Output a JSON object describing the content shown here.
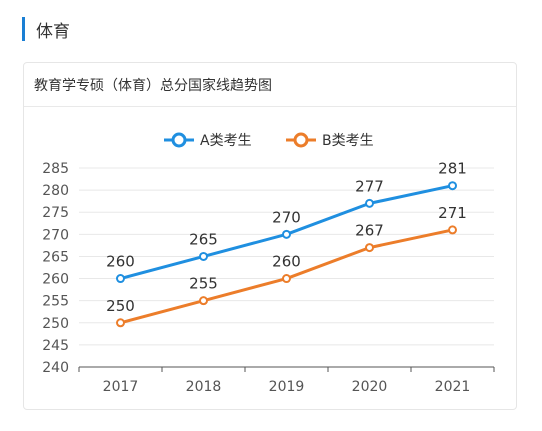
{
  "section": {
    "title": "体育"
  },
  "card": {
    "title": "教育学专硕（体育）总分国家线趋势图"
  },
  "colors": {
    "accent": "#1a7fd4",
    "seriesA": "#1f8fe0",
    "seriesB": "#ec7d2a"
  },
  "chart_data": {
    "type": "line",
    "categories": [
      "2017",
      "2018",
      "2019",
      "2020",
      "2021"
    ],
    "series": [
      {
        "name": "A类考生",
        "values": [
          260,
          265,
          270,
          277,
          281
        ]
      },
      {
        "name": "B类考生",
        "values": [
          250,
          255,
          260,
          267,
          271
        ]
      }
    ],
    "ylim": [
      240,
      285
    ],
    "yticks": [
      "240",
      "245",
      "250",
      "255",
      "260",
      "265",
      "270",
      "275",
      "280",
      "285"
    ],
    "grid": true,
    "legend": "top-center"
  }
}
